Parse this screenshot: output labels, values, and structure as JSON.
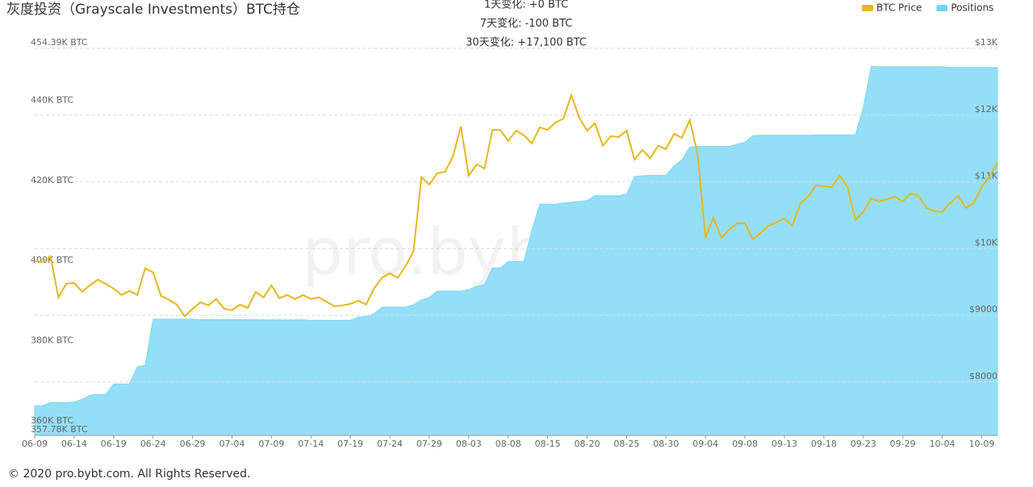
{
  "chart_data": {
    "type": "line",
    "title": "灰度投资（Grayscale Investments）BTC持仓",
    "annotations": [
      "1天变化: +0 BTC",
      "7天变化: -100 BTC",
      "30天变化: +17,100 BTC"
    ],
    "watermark": "pro.bybt.com",
    "legend": "top-right",
    "grid": true,
    "categories": [
      "06-09",
      null,
      null,
      null,
      null,
      "06-14",
      null,
      null,
      null,
      null,
      "06-19",
      null,
      null,
      null,
      null,
      "06-24",
      null,
      null,
      null,
      null,
      "06-29",
      null,
      null,
      null,
      null,
      "07-04",
      null,
      null,
      null,
      null,
      "07-09",
      null,
      null,
      null,
      null,
      "07-14",
      null,
      null,
      null,
      null,
      "07-19",
      null,
      null,
      null,
      null,
      "07-24",
      null,
      null,
      null,
      null,
      "07-29",
      null,
      null,
      null,
      null,
      "08-03",
      null,
      null,
      null,
      null,
      "08-08",
      null,
      null,
      null,
      null,
      "08-15",
      null,
      null,
      null,
      null,
      "08-20",
      null,
      null,
      null,
      null,
      "08-25",
      null,
      null,
      null,
      null,
      "08-30",
      null,
      null,
      null,
      null,
      "09-04",
      null,
      null,
      null,
      null,
      "09-08",
      null,
      null,
      null,
      null,
      "09-13",
      null,
      null,
      null,
      null,
      "09-18",
      null,
      null,
      null,
      null,
      "09-23",
      null,
      null,
      null,
      null,
      "09-29",
      null,
      null,
      null,
      null,
      "10-04",
      null,
      null,
      null,
      null,
      "10-09",
      null,
      null
    ],
    "series": [
      {
        "name": "BTC Price",
        "type": "line",
        "axis": "y2",
        "color": "#e6b71e",
        "values": [
          9812,
          9800,
          9884,
          9268,
          9473,
          9485,
          9353,
          9450,
          9534,
          9470,
          9400,
          9304,
          9364,
          9304,
          9703,
          9643,
          9292,
          9232,
          9160,
          8985,
          9094,
          9196,
          9148,
          9244,
          9099,
          9075,
          9160,
          9111,
          9353,
          9268,
          9449,
          9256,
          9304,
          9244,
          9304,
          9244,
          9268,
          9200,
          9135,
          9150,
          9170,
          9220,
          9160,
          9401,
          9560,
          9630,
          9560,
          9740,
          9957,
          11068,
          10959,
          11128,
          11152,
          11382,
          11829,
          11092,
          11261,
          11200,
          11780,
          11780,
          11611,
          11768,
          11696,
          11575,
          11817,
          11780,
          11889,
          11949,
          12300,
          11961,
          11768,
          11877,
          11539,
          11684,
          11672,
          11768,
          11333,
          11478,
          11357,
          11539,
          11490,
          11720,
          11660,
          11925,
          11418,
          10162,
          10464,
          10162,
          10283,
          10380,
          10380,
          10138,
          10235,
          10343,
          10392,
          10452,
          10343,
          10669,
          10778,
          10947,
          10935,
          10923,
          11092,
          10923,
          10428,
          10549,
          10754,
          10705,
          10742,
          10778,
          10705,
          10826,
          10790,
          10609,
          10561,
          10549,
          10681,
          10790,
          10609,
          10681,
          10923,
          11080,
          11285
        ]
      },
      {
        "name": "Positions",
        "type": "area",
        "color": "#94dff7",
        "values": [
          365200,
          365200,
          366000,
          366000,
          366000,
          366100,
          366800,
          367800,
          368000,
          368000,
          370600,
          370600,
          370600,
          374900,
          375300,
          386800,
          386800,
          386800,
          386800,
          386800,
          386800,
          386700,
          386700,
          386700,
          386700,
          386700,
          386700,
          386700,
          386700,
          386600,
          386600,
          386600,
          386600,
          386600,
          386600,
          386500,
          386500,
          386500,
          386500,
          386500,
          386500,
          387300,
          387500,
          388100,
          389800,
          389800,
          389800,
          389800,
          390400,
          391600,
          392200,
          393800,
          393800,
          393800,
          393800,
          394200,
          395000,
          395400,
          399600,
          399600,
          401200,
          401200,
          401200,
          409000,
          415500,
          415500,
          415500,
          415800,
          416000,
          416200,
          416400,
          417600,
          417600,
          417600,
          417600,
          418000,
          422400,
          422600,
          422700,
          422700,
          422700,
          425000,
          426500,
          429800,
          429900,
          429900,
          429900,
          429900,
          429900,
          430500,
          431000,
          432600,
          432700,
          432700,
          432700,
          432700,
          432700,
          432700,
          432700,
          432800,
          432800,
          432800,
          432800,
          432800,
          432800,
          439700,
          449900,
          449800,
          449800,
          449800,
          449800,
          449800,
          449800,
          449800,
          449800,
          449800,
          449600,
          449600,
          449600,
          449600,
          449600,
          449600,
          449600
        ]
      }
    ],
    "ylim": [
      357780,
      454390
    ],
    "yticks": [
      {
        "value": 357780,
        "label": "357.78K BTC"
      },
      {
        "value": 360000,
        "label": "360K BTC"
      },
      {
        "value": 380000,
        "label": "380K BTC"
      },
      {
        "value": 400000,
        "label": "400K BTC"
      },
      {
        "value": 420000,
        "label": "420K BTC"
      },
      {
        "value": 440000,
        "label": "440K BTC"
      },
      {
        "value": 454390,
        "label": "454.39K BTC"
      }
    ],
    "y2lim": [
      7200,
      13000
    ],
    "y2ticks": [
      {
        "value": 8000,
        "label": "$8000"
      },
      {
        "value": 9000,
        "label": "$9000"
      },
      {
        "value": 10000,
        "label": "$10K"
      },
      {
        "value": 11000,
        "label": "$11K"
      },
      {
        "value": 12000,
        "label": "$12K"
      },
      {
        "value": 13000,
        "label": "$13K"
      }
    ]
  },
  "footer": "© 2020 pro.bybt.com. All Rights Reserved."
}
